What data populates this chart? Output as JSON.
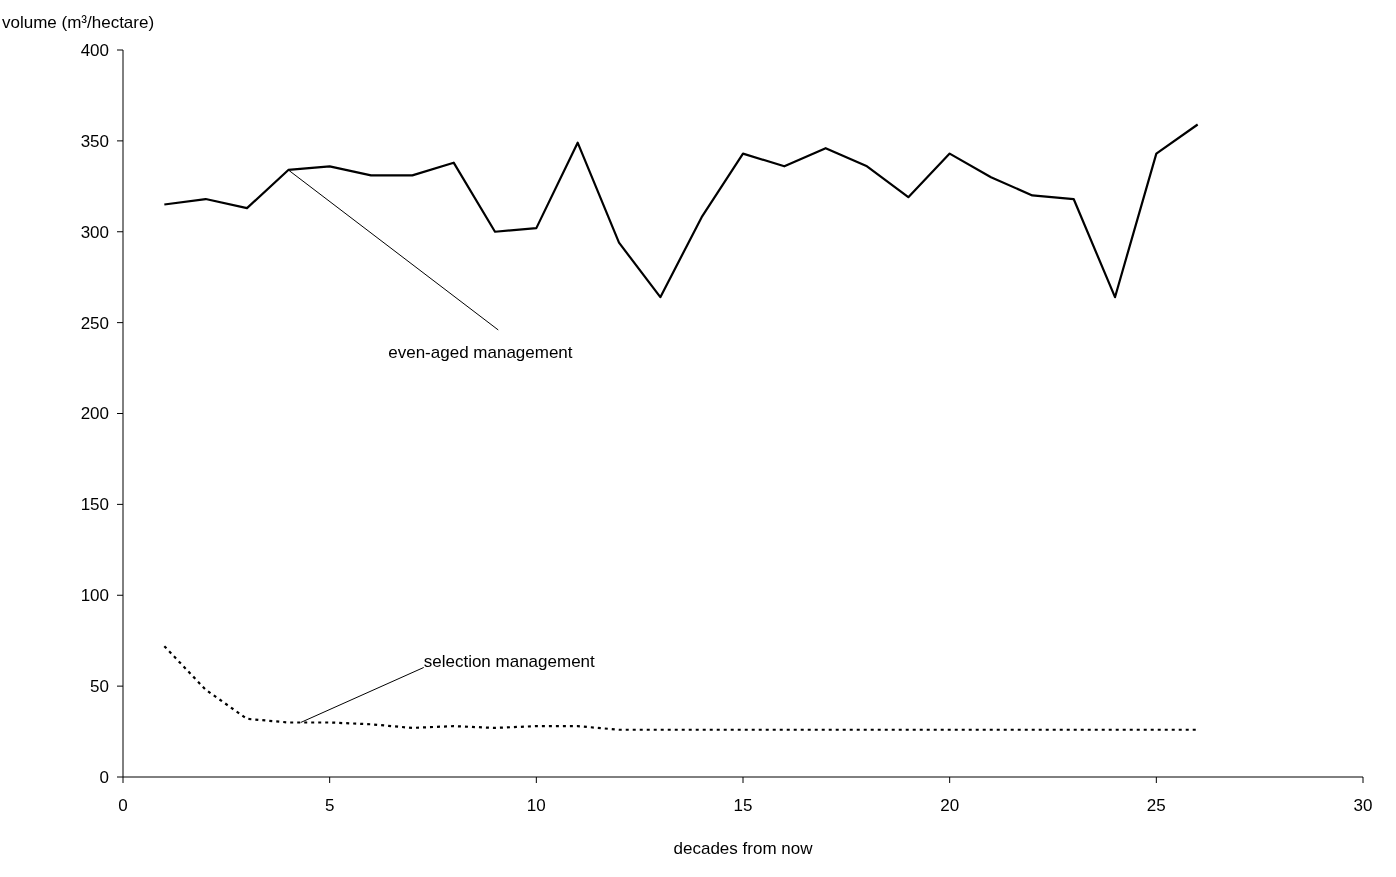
{
  "chart_data": {
    "type": "line",
    "xlabel": "decades from now",
    "ylabel": "volume (m³/hectare)",
    "x": [
      1,
      2,
      3,
      4,
      5,
      6,
      7,
      8,
      9,
      10,
      11,
      12,
      13,
      14,
      15,
      16,
      17,
      18,
      19,
      20,
      21,
      22,
      23,
      24,
      25,
      26
    ],
    "series": [
      {
        "color": "#000000",
        "line_style": "solid",
        "values": [
          315,
          318,
          313,
          334,
          336,
          331,
          331,
          338,
          300,
          302,
          349,
          294,
          264,
          308,
          343,
          336,
          346,
          336,
          319,
          343,
          330,
          320,
          318,
          264,
          343,
          359
        ]
      },
      {
        "color": "#000000",
        "line_style": "dotted",
        "values": [
          72,
          48,
          32,
          30,
          30,
          29,
          27,
          28,
          27,
          28,
          28,
          26,
          26,
          26,
          26,
          26,
          26,
          26,
          26,
          26,
          26,
          26,
          26,
          26,
          26,
          26
        ]
      }
    ],
    "annotations": [
      {
        "text": "even-aged management",
        "x": 4,
        "y": 334
      },
      {
        "text": "selection management",
        "x": 4.3,
        "y": 30
      }
    ],
    "xlim": [
      0,
      30
    ],
    "xticks": [
      0,
      5,
      10,
      15,
      20,
      25,
      30
    ],
    "ylim": [
      0,
      400
    ],
    "yticks": [
      0,
      50,
      100,
      150,
      200,
      250,
      300,
      350,
      400
    ],
    "grid": false,
    "marker": "none"
  }
}
